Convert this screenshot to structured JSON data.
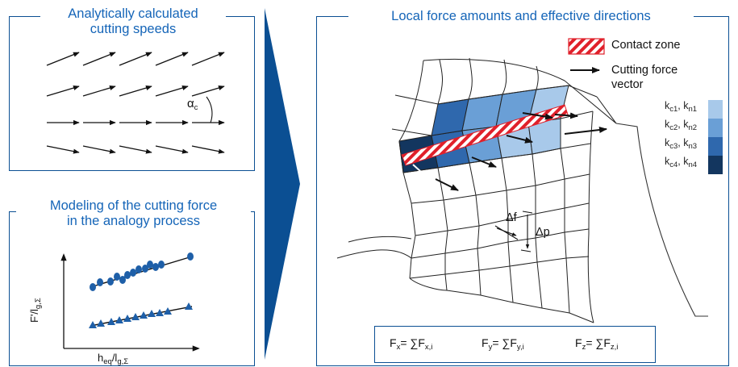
{
  "panels": {
    "speeds": {
      "title_line1": "Analytically calculated",
      "title_line2": "cutting speeds",
      "angle_symbol": "α",
      "angle_sub": "c"
    },
    "model": {
      "title_line1": "Modeling of the cutting force",
      "title_line2": "in the analogy process",
      "y_axis": {
        "main": "F'/l",
        "sub": "g,Σ"
      },
      "x_axis": {
        "main": "h",
        "sub1": "eq",
        "sep": "/l",
        "sub2": "g,Σ"
      }
    },
    "local": {
      "title": "Local force amounts and effective directions",
      "legend_contact": "Contact zone",
      "legend_vector_line1": "Cutting force",
      "legend_vector_line2": "vector",
      "delta_f": "Δf",
      "delta_p": "Δp"
    }
  },
  "color_scale": [
    {
      "k": "k",
      "s1": "c1",
      "s2": "n1",
      "color": "#a8c9ea"
    },
    {
      "k": "k",
      "s1": "c2",
      "s2": "n2",
      "color": "#6a9fd6"
    },
    {
      "k": "k",
      "s1": "c3",
      "s2": "n3",
      "color": "#2f68ad"
    },
    {
      "k": "k",
      "s1": "c4",
      "s2": "n4",
      "color": "#13365f"
    }
  ],
  "formulas": [
    {
      "lhs": "F",
      "lsub": "x",
      "rhs": "= ∑F",
      "rsub": "x,i"
    },
    {
      "lhs": "F",
      "lsub": "y",
      "rhs": "= ∑F",
      "rsub": "y,i"
    },
    {
      "lhs": "F",
      "lsub": "z",
      "rhs": "= ∑F",
      "rsub": "z,i"
    }
  ],
  "colors": {
    "frame": "#0b4f93",
    "title": "#1565b8",
    "hatch_red": "#e0202a",
    "arrow": "#0b4f93"
  }
}
